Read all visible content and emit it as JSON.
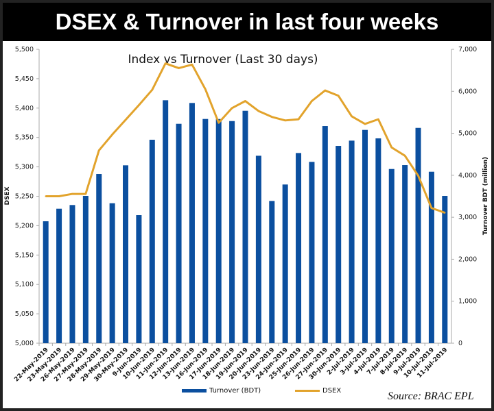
{
  "header": {
    "title": "DSEX & Turnover in last four weeks"
  },
  "source": "Source: BRAC EPL",
  "colors": {
    "bar": "#0b4f9f",
    "line": "#e2a32c"
  },
  "chart_data": {
    "type": "bar+line",
    "title": "Index vs Turnover (Last 30 days)",
    "xlabel": "",
    "ylabel_left": "DSEX",
    "ylabel_right": "Turnover BDT (million)",
    "ylim_left": [
      5000,
      5500
    ],
    "ylim_right": [
      0,
      7000
    ],
    "yticks_left": [
      "5,000",
      "5,050",
      "5,100",
      "5,150",
      "5,200",
      "5,250",
      "5,300",
      "5,350",
      "5,400",
      "5,450",
      "5,500"
    ],
    "yticks_right": [
      "0",
      "1,000",
      "2,000",
      "3,000",
      "4,000",
      "5,000",
      "6,000",
      "7,000"
    ],
    "legend_position": "bottom",
    "categories": [
      "22-May-2019",
      "23-May-2019",
      "26-May-2019",
      "27-May-2019",
      "28-May-2019",
      "29-May-2019",
      "30-May-2019",
      "9-Jun-2019",
      "10-Jun-2019",
      "11-Jun-2019",
      "12-Jun-2019",
      "13-Jun-2019",
      "16-Jun-2019",
      "17-Jun-2019",
      "18-Jun-2019",
      "19-Jun-2019",
      "20-Jun-2019",
      "23-Jun-2019",
      "24-Jun-2019",
      "25-Jun-2019",
      "26-Jun-2019",
      "27-Jun-2019",
      "30-Jun-2019",
      "2-Jul-2019",
      "3-Jul-2019",
      "4-Jul-2019",
      "7-Jul-2019",
      "8-Jul-2019",
      "9-Jul-2019",
      "10-Jul-2019",
      "11-Jul-2019"
    ],
    "series": [
      {
        "name": "Turnover (BDT)",
        "type": "bar",
        "axis": "right",
        "values": [
          2904,
          3203,
          3291,
          3508,
          4030,
          3334,
          4237,
          3051,
          4846,
          5787,
          5226,
          5722,
          5341,
          5340,
          5291,
          5536,
          4465,
          3388,
          3780,
          4530,
          4319,
          5172,
          4699,
          4825,
          5080,
          4879,
          4149,
          4242,
          5128,
          4084,
          3508
        ]
      },
      {
        "name": "DSEX",
        "type": "line",
        "axis": "left",
        "values": [
          5250,
          5250,
          5254,
          5254,
          5328,
          5355,
          5380,
          5405,
          5431,
          5476,
          5468,
          5474,
          5432,
          5375,
          5400,
          5412,
          5395,
          5385,
          5379,
          5381,
          5412,
          5430,
          5421,
          5386,
          5373,
          5381,
          5333,
          5319,
          5285,
          5230,
          5222
        ]
      }
    ]
  }
}
